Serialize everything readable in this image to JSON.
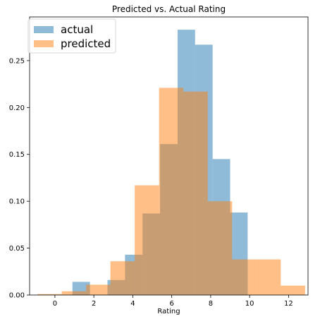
{
  "chart_data": {
    "type": "histogram",
    "title": "Predicted vs. Actual Rating",
    "xlabel": "Rating",
    "ylabel": "",
    "xlim": [
      -1.3,
      13.0
    ],
    "ylim": [
      0,
      0.2966
    ],
    "xticks": [
      0,
      2,
      4,
      6,
      8,
      10,
      12
    ],
    "yticks": [
      0.0,
      0.05,
      0.1,
      0.15,
      0.2,
      0.25
    ],
    "xtick_labels": [
      "0",
      "2",
      "4",
      "6",
      "8",
      "10",
      "12"
    ],
    "ytick_labels": [
      "0.00",
      "0.05",
      "0.10",
      "0.15",
      "0.20",
      "0.25"
    ],
    "legend_position": "top-left",
    "series": [
      {
        "name": "actual",
        "color": "#1f77b4",
        "opacity": 0.5,
        "bin_edges": [
          0.9,
          1.8,
          2.7,
          3.6,
          4.5,
          5.4,
          6.3,
          7.2,
          8.1,
          9.0,
          9.9
        ],
        "values": [
          0.014,
          0.0,
          0.016,
          0.043,
          0.087,
          0.161,
          0.283,
          0.267,
          0.145,
          0.088
        ]
      },
      {
        "name": "predicted",
        "color": "#ff7f0e",
        "opacity": 0.5,
        "bin_edges": [
          -0.9,
          0.35,
          1.6,
          2.85,
          4.1,
          5.35,
          6.6,
          7.85,
          9.1,
          10.35,
          11.6,
          12.85
        ],
        "values": [
          0.001,
          0.004,
          0.011,
          0.036,
          0.117,
          0.221,
          0.217,
          0.1,
          0.038,
          0.038,
          0.01
        ]
      }
    ]
  }
}
